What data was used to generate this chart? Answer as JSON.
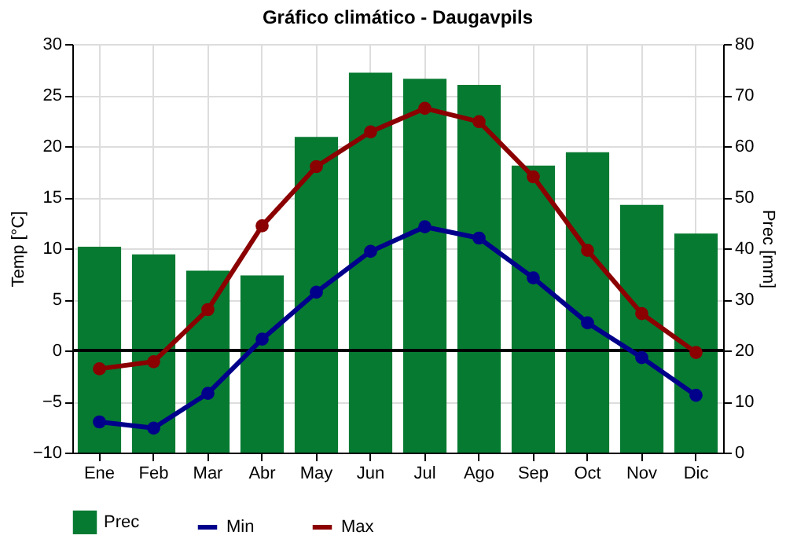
{
  "chart_data": {
    "type": "bar",
    "title": "Gráfico climático - Daugavpils",
    "ylabel": "Temp [°C]",
    "y2label": "Prec [mm]",
    "categories": [
      "Ene",
      "Feb",
      "Mar",
      "Abr",
      "May",
      "Jun",
      "Jul",
      "Ago",
      "Sep",
      "Oct",
      "Nov",
      "Dic"
    ],
    "series": [
      {
        "name": "Prec",
        "type": "bar",
        "axis": "y2",
        "color": "#077a32",
        "values": [
          40.3,
          38.8,
          35.6,
          34.7,
          61.8,
          74.4,
          73.2,
          72,
          56.2,
          58.8,
          48.5,
          42.9
        ]
      },
      {
        "name": "Min",
        "type": "line",
        "color": "#00008b",
        "values": [
          -7,
          -7.6,
          -4.2,
          1.1,
          5.7,
          9.7,
          12.1,
          11,
          7.1,
          2.7,
          -0.7,
          -4.4
        ]
      },
      {
        "name": "Max",
        "type": "line",
        "color": "#8b0000",
        "values": [
          -1.8,
          -1.1,
          4,
          12.2,
          18,
          21.4,
          23.7,
          22.4,
          17,
          9.8,
          3.6,
          -0.2
        ]
      }
    ],
    "ylim": [
      -10,
      30
    ],
    "yticks": [
      -10,
      -5,
      0,
      5,
      10,
      15,
      20,
      25,
      30
    ],
    "y2lim": [
      0,
      80
    ],
    "y2ticks": [
      0,
      10,
      20,
      30,
      40,
      50,
      60,
      70,
      80
    ],
    "ref_lines": [
      {
        "axis": "y",
        "value": 0,
        "color": "#000000"
      }
    ],
    "grid": true,
    "legend": "bottom",
    "marker": "circle"
  }
}
